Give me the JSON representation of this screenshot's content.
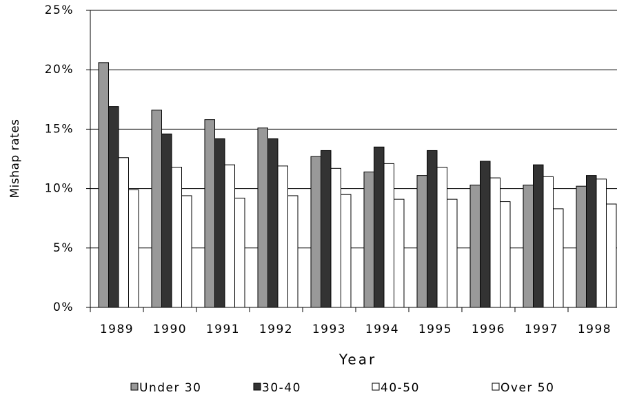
{
  "chart_data": {
    "type": "bar",
    "y_label": "Mishap rates",
    "x_label": "Year",
    "categories": [
      "1989",
      "1990",
      "1991",
      "1992",
      "1993",
      "1994",
      "1995",
      "1996",
      "1997",
      "1998"
    ],
    "series": [
      {
        "name": "Under 30",
        "color": "#999999",
        "values": [
          20.6,
          16.6,
          15.8,
          15.1,
          12.7,
          11.4,
          11.1,
          10.3,
          10.3,
          10.2
        ]
      },
      {
        "name": "30-40",
        "color": "#333333",
        "values": [
          16.9,
          14.6,
          14.2,
          14.2,
          13.2,
          13.5,
          13.2,
          12.3,
          12.0,
          11.1
        ]
      },
      {
        "name": "40-50",
        "color": "#ffffff",
        "values": [
          12.6,
          11.8,
          12.0,
          11.9,
          11.7,
          12.1,
          11.8,
          10.9,
          11.0,
          10.8
        ]
      },
      {
        "name": "Over 50",
        "color": "#ffffff",
        "values": [
          9.9,
          9.4,
          9.2,
          9.4,
          9.5,
          9.1,
          9.1,
          8.9,
          8.3,
          8.7
        ]
      }
    ],
    "ylim": [
      0,
      25
    ],
    "yticks": [
      {
        "value": 0,
        "label": "0%"
      },
      {
        "value": 5,
        "label": "5%"
      },
      {
        "value": 10,
        "label": "10%"
      },
      {
        "value": 15,
        "label": "15%"
      },
      {
        "value": 20,
        "label": "20%"
      },
      {
        "value": 25,
        "label": "25%"
      }
    ],
    "grid": true,
    "legend": "bottom"
  }
}
